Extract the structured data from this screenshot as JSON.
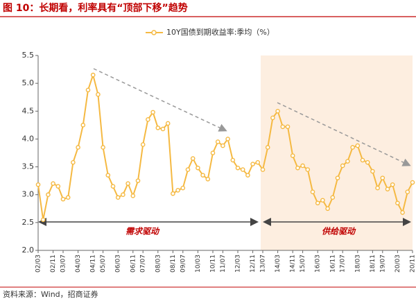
{
  "chart_data": {
    "type": "line",
    "title": "图 10：长期看，利率具有“顶部下移”趋势",
    "source": "资料来源：Wind，招商证券",
    "annotations": [
      "需求驱动",
      "供给驱动"
    ],
    "categories": [
      "02/03",
      null,
      null,
      "02/11",
      null,
      "03/07",
      null,
      null,
      "04/03",
      null,
      null,
      "04/11",
      null,
      "05/07",
      null,
      null,
      "06/03",
      null,
      null,
      "06/11",
      null,
      "07/07",
      null,
      null,
      "08/03",
      null,
      null,
      "08/11",
      null,
      "09/07",
      null,
      null,
      "10/03",
      null,
      null,
      "10/11",
      null,
      "11/07",
      null,
      null,
      "12/03",
      null,
      null,
      "12/11",
      null,
      "13/07",
      null,
      null,
      "14/03",
      null,
      null,
      "14/11",
      null,
      "15/07",
      null,
      null,
      "16/03",
      null,
      null,
      "16/11",
      null,
      "17/07",
      null,
      null,
      "18/03",
      null,
      null,
      "18/11",
      null,
      "19/07",
      null,
      null,
      "20/03",
      null,
      null,
      "20/11"
    ],
    "series": [
      {
        "name": "10Y国债到期收益率:季均（%）",
        "color": "#f5b942",
        "values": [
          3.18,
          2.55,
          3.0,
          3.2,
          3.15,
          2.92,
          2.95,
          3.58,
          3.85,
          4.25,
          4.88,
          5.15,
          4.8,
          3.85,
          3.35,
          3.15,
          2.95,
          3.0,
          3.2,
          2.98,
          3.25,
          3.9,
          4.35,
          4.48,
          4.2,
          4.18,
          4.28,
          3.02,
          3.08,
          3.12,
          3.45,
          3.65,
          3.48,
          3.35,
          3.28,
          3.75,
          3.95,
          3.88,
          4.0,
          3.62,
          3.48,
          3.45,
          3.35,
          3.55,
          3.58,
          3.45,
          3.85,
          4.38,
          4.5,
          4.22,
          4.22,
          3.7,
          3.48,
          3.52,
          3.45,
          3.05,
          2.85,
          2.9,
          2.75,
          2.95,
          3.3,
          3.52,
          3.6,
          3.85,
          3.88,
          3.62,
          3.58,
          3.42,
          3.12,
          3.3,
          3.1,
          3.18,
          2.85,
          2.68,
          3.05,
          3.22
        ]
      }
    ],
    "ylim": [
      2.0,
      5.5
    ],
    "yticks": [
      {
        "value": 2,
        "label": "2.0"
      },
      2.5,
      {
        "value": 3,
        "label": "3.0"
      },
      3.5,
      {
        "value": 4,
        "label": "4.0"
      },
      4.5,
      {
        "value": 5,
        "label": "5.0"
      },
      5.5
    ],
    "grid": false
  }
}
